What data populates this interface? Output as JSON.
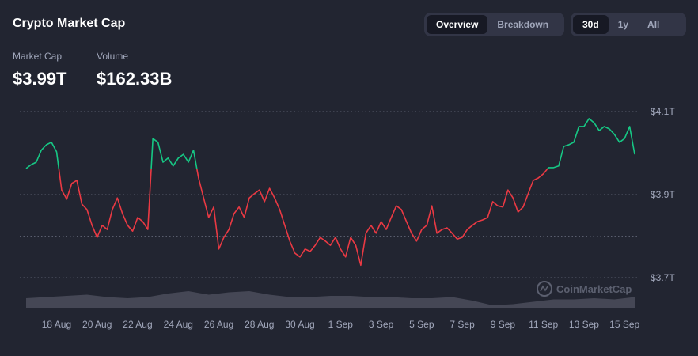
{
  "header": {
    "title": "Crypto Market Cap",
    "stats": [
      {
        "label": "Market Cap",
        "value": "$3.99T"
      },
      {
        "label": "Volume",
        "value": "$162.33B"
      }
    ],
    "view_tabs": [
      "Overview",
      "Breakdown"
    ],
    "range_tabs": [
      "30d",
      "1y",
      "All"
    ]
  },
  "chart_data": {
    "type": "line",
    "watermark": "CoinMarketCap",
    "categories": [
      null,
      null,
      null,
      null,
      null,
      null,
      "18 Aug",
      null,
      null,
      null,
      null,
      null,
      null,
      null,
      "20 Aug",
      null,
      null,
      null,
      null,
      null,
      null,
      null,
      "22 Aug",
      null,
      null,
      null,
      null,
      null,
      null,
      null,
      "24 Aug",
      null,
      null,
      null,
      null,
      null,
      null,
      null,
      "26 Aug",
      null,
      null,
      null,
      null,
      null,
      null,
      null,
      "28 Aug",
      null,
      null,
      null,
      null,
      null,
      null,
      null,
      "30 Aug",
      null,
      null,
      null,
      null,
      null,
      null,
      null,
      "1 Sep",
      null,
      null,
      null,
      null,
      null,
      null,
      null,
      "3 Sep",
      null,
      null,
      null,
      null,
      null,
      null,
      null,
      "5 Sep",
      null,
      null,
      null,
      null,
      null,
      null,
      null,
      "7 Sep",
      null,
      null,
      null,
      null,
      null,
      null,
      null,
      "9 Sep",
      null,
      null,
      null,
      null,
      null,
      null,
      null,
      "11 Sep",
      null,
      null,
      null,
      null,
      null,
      null,
      null,
      "13 Sep",
      null,
      null,
      null,
      null,
      null,
      null,
      null,
      "15 Sep",
      null,
      null
    ],
    "values": [
      3.963,
      3.972,
      3.978,
      4.007,
      4.02,
      4.026,
      4.003,
      3.911,
      3.889,
      3.927,
      3.934,
      3.877,
      3.864,
      3.826,
      3.797,
      3.826,
      3.816,
      3.864,
      3.892,
      3.854,
      3.826,
      3.812,
      3.845,
      3.835,
      3.816,
      4.035,
      4.026,
      3.978,
      3.988,
      3.969,
      3.988,
      3.997,
      3.978,
      4.007,
      3.94,
      3.892,
      3.845,
      3.87,
      3.769,
      3.797,
      3.816,
      3.854,
      3.87,
      3.845,
      3.892,
      3.902,
      3.911,
      3.883,
      3.915,
      3.892,
      3.864,
      3.826,
      3.788,
      3.759,
      3.75,
      3.769,
      3.763,
      3.778,
      3.797,
      3.788,
      3.778,
      3.797,
      3.769,
      3.75,
      3.797,
      3.778,
      3.73,
      3.807,
      3.826,
      3.807,
      3.835,
      3.816,
      3.845,
      3.873,
      3.864,
      3.835,
      3.807,
      3.788,
      3.816,
      3.826,
      3.873,
      3.807,
      3.816,
      3.82,
      3.807,
      3.793,
      3.797,
      3.816,
      3.826,
      3.835,
      3.839,
      3.845,
      3.883,
      3.873,
      3.87,
      3.911,
      3.892,
      3.858,
      3.87,
      3.902,
      3.934,
      3.94,
      3.95,
      3.965,
      3.965,
      3.969,
      4.016,
      4.02,
      4.026,
      4.064,
      4.064,
      4.083,
      4.073,
      4.054,
      4.064,
      4.058,
      4.045,
      4.026,
      4.035,
      4.064,
      3.997
    ],
    "up_color": "#16c784",
    "down_color": "#ea3943",
    "ylim": [
      3.7,
      4.1
    ],
    "yticks": [
      {
        "value": 4.1,
        "label": "$4.1T"
      },
      {
        "value": 3.9,
        "label": "$3.9T"
      },
      {
        "value": 3.7,
        "label": "$3.7T"
      }
    ],
    "ygrid": [
      4.1,
      4.0,
      3.9,
      3.8,
      3.7
    ],
    "volume": {
      "color": "#4b4e5c",
      "vlim": [
        0,
        100
      ],
      "values": [
        40,
        45,
        50,
        55,
        45,
        40,
        45,
        60,
        70,
        55,
        65,
        70,
        55,
        45,
        45,
        50,
        50,
        45,
        45,
        40,
        40,
        45,
        30,
        10,
        15,
        25,
        35,
        35,
        40,
        35,
        45
      ]
    }
  }
}
